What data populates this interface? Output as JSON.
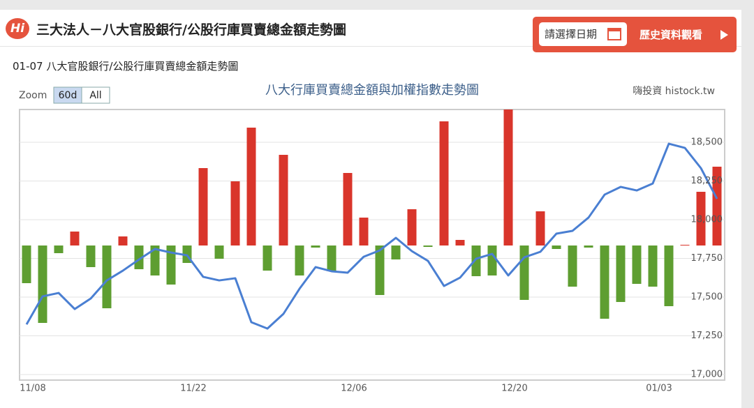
{
  "header": {
    "logo": "Hi",
    "title": "三大法人－八大官股銀行/公股行庫買賣總金額走勢圖",
    "date_picker": "請選擇日期",
    "history_button": "歷史資料觀看"
  },
  "subtitle": "01-07 八大官股銀行/公股行庫買賣總金額走勢圖",
  "zoom": {
    "label": "Zoom",
    "buttons": [
      "60d",
      "All"
    ]
  },
  "chart_data": {
    "type": "bar-line",
    "title": "八大行庫買賣總金額與加權指數走勢圖",
    "credit": "嗨投資 histock.tw",
    "categories": [
      "11/08",
      null,
      null,
      null,
      null,
      null,
      null,
      null,
      null,
      null,
      "11/22",
      null,
      null,
      null,
      null,
      null,
      null,
      null,
      null,
      null,
      "12/06",
      null,
      null,
      null,
      null,
      null,
      null,
      null,
      null,
      null,
      "12/20",
      null,
      null,
      null,
      null,
      null,
      null,
      null,
      null,
      "01/03",
      null,
      null,
      null,
      null
    ],
    "series": [
      {
        "type": "bar",
        "axis": "y2",
        "positive_color": "#d9352b",
        "negative_color": "#5e9e31",
        "values": [
          -54,
          -111,
          -11,
          20,
          -31,
          -90,
          13,
          -34,
          -43,
          -56,
          -25,
          111,
          -19,
          92,
          169,
          -36,
          130,
          -43,
          -3,
          -37,
          104,
          40,
          -71,
          -20,
          52,
          -2,
          178,
          8,
          -44,
          -43,
          195,
          -78,
          49,
          -5,
          -59,
          -3,
          -105,
          -81,
          -55,
          -59,
          -87,
          1,
          77,
          113
        ]
      },
      {
        "type": "line",
        "color": "#4a7fd2",
        "values": [
          17324,
          17505,
          17527,
          17423,
          17491,
          17608,
          17671,
          17743,
          17811,
          17788,
          17770,
          17631,
          17608,
          17622,
          17338,
          17297,
          17392,
          17554,
          17694,
          17667,
          17658,
          17761,
          17802,
          17883,
          17797,
          17734,
          17572,
          17626,
          17748,
          17779,
          17640,
          17757,
          17793,
          17910,
          17928,
          18014,
          18162,
          18212,
          18189,
          18234,
          18491,
          18464,
          18333,
          18135
        ]
      }
    ],
    "ylim": [
      16964,
      18712
    ],
    "yticks": [
      {
        "value": 17000,
        "label": "17,000"
      },
      {
        "value": 17250,
        "label": "17,250"
      },
      {
        "value": 17500,
        "label": "17,500"
      },
      {
        "value": 17750,
        "label": "17,750"
      },
      {
        "value": 18000,
        "label": "18,000"
      },
      {
        "value": 18250,
        "label": "18,250"
      },
      {
        "value": 18500,
        "label": "18,500"
      }
    ],
    "y2lim": [
      -193,
      195
    ],
    "grid": true
  }
}
